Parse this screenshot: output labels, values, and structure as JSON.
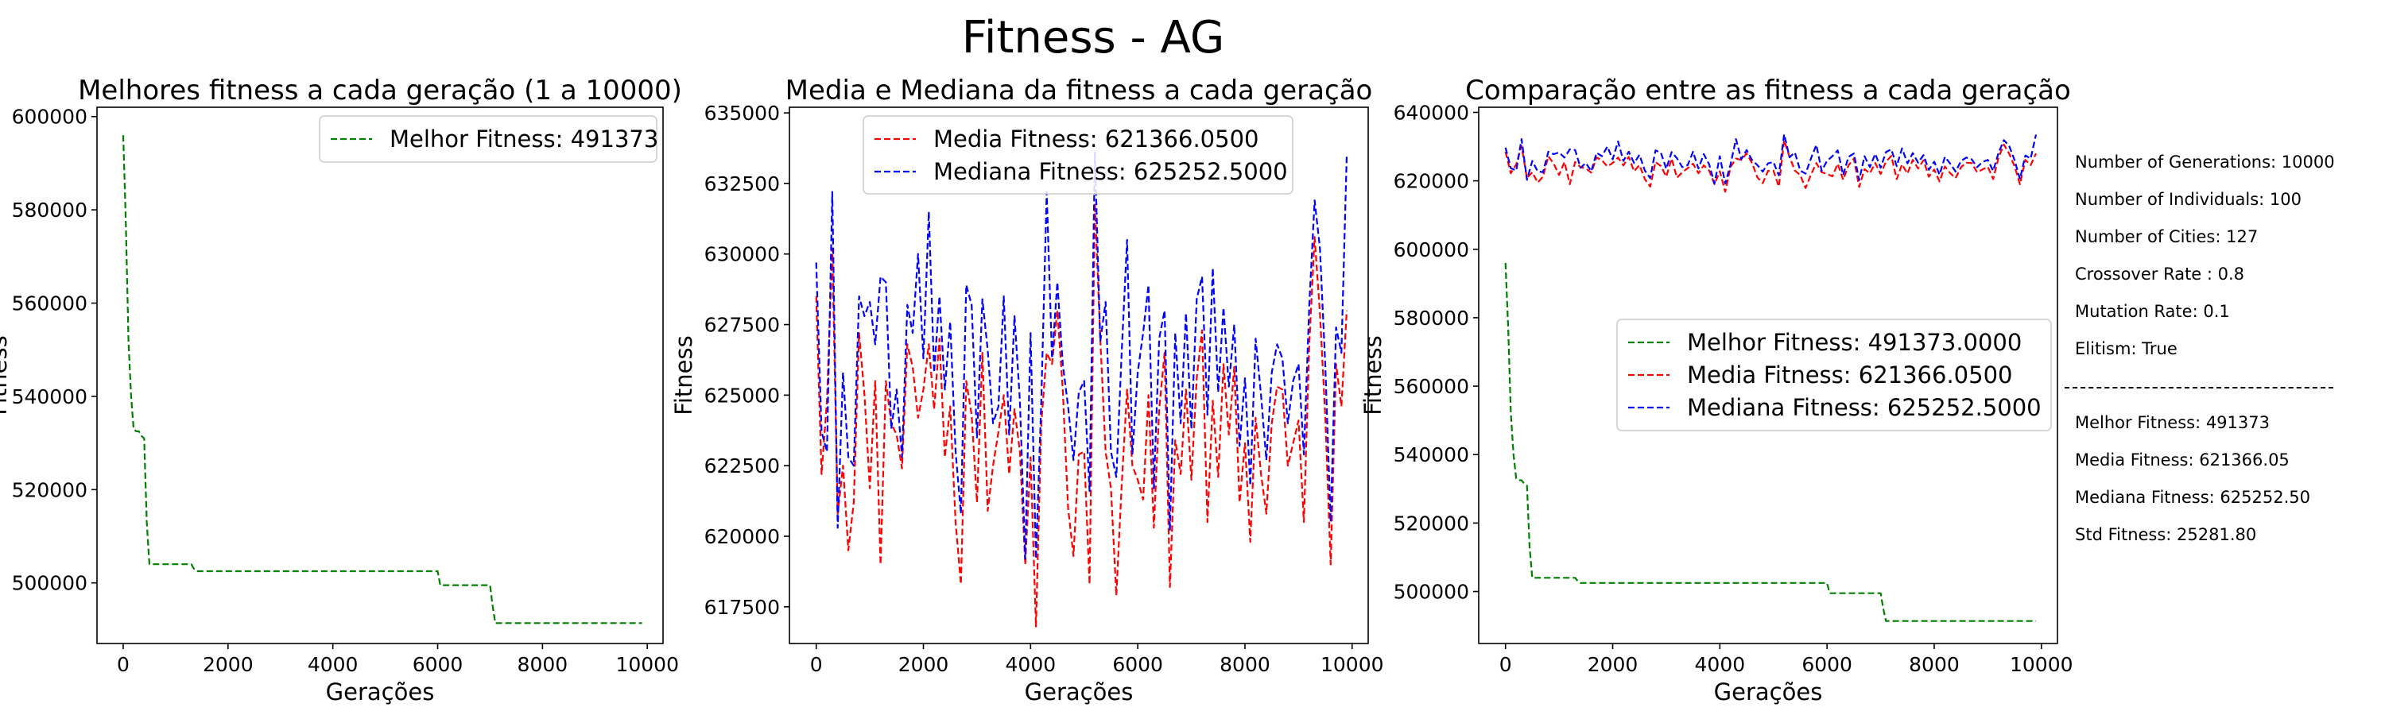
{
  "figure_title": "Fitness - AG",
  "chart_data": [
    {
      "type": "line",
      "title": "Melhores fitness a cada geração (1 a 10000)",
      "xlabel": "Gerações",
      "ylabel": "Fitness",
      "xlim": [
        -500,
        10300
      ],
      "ylim": [
        487000,
        602000
      ],
      "xticks": [
        0,
        2000,
        4000,
        6000,
        8000,
        10000
      ],
      "yticks": [
        500000,
        520000,
        540000,
        560000,
        580000,
        600000
      ],
      "ytick_decimals": 0,
      "legend_position": "upper right",
      "series": [
        {
          "name": "Melhor Fitness: 491373",
          "color": "#008000",
          "x": [
            0,
            50,
            100,
            150,
            200,
            250,
            300,
            350,
            400,
            450,
            500,
            1300,
            1350,
            1400,
            6000,
            6050,
            6100,
            7000,
            7050,
            7100,
            9900
          ],
          "y": [
            596000,
            577000,
            552000,
            540000,
            533000,
            532500,
            532500,
            531500,
            531000,
            513000,
            504000,
            504000,
            503000,
            502500,
            502500,
            499500,
            499500,
            499500,
            495000,
            491373,
            491373
          ]
        }
      ]
    },
    {
      "type": "line",
      "title": "Media e Mediana da fitness a cada geração",
      "xlabel": "Gerações",
      "ylabel": "Fitness",
      "xlim": [
        -500,
        10300
      ],
      "ylim": [
        616200,
        635200
      ],
      "xticks": [
        0,
        2000,
        4000,
        6000,
        8000,
        10000
      ],
      "yticks": [
        617500,
        620000,
        622500,
        625000,
        627500,
        630000,
        632500,
        635000
      ],
      "ytick_decimals": 0,
      "legend_position": "upper center",
      "series": [
        {
          "name": "Media Fitness: 621366.0500",
          "color": "#ff0000",
          "x": [
            0,
            100,
            200,
            300,
            400,
            500,
            600,
            700,
            800,
            900,
            1000,
            1100,
            1200,
            1300,
            1400,
            1500,
            1600,
            1700,
            1800,
            1900,
            2000,
            2100,
            2200,
            2300,
            2400,
            2500,
            2600,
            2700,
            2800,
            2900,
            3000,
            3100,
            3200,
            3300,
            3400,
            3500,
            3600,
            3700,
            3800,
            3900,
            4000,
            4100,
            4200,
            4300,
            4400,
            4500,
            4600,
            4700,
            4800,
            4900,
            5000,
            5100,
            5200,
            5300,
            5400,
            5500,
            5600,
            5700,
            5800,
            5900,
            6000,
            6100,
            6200,
            6300,
            6400,
            6500,
            6600,
            6700,
            6800,
            6900,
            7000,
            7100,
            7200,
            7300,
            7400,
            7500,
            7600,
            7700,
            7800,
            7900,
            8000,
            8100,
            8200,
            8300,
            8400,
            8500,
            8600,
            8700,
            8800,
            8900,
            9000,
            9100,
            9200,
            9300,
            9400,
            9500,
            9600,
            9700,
            9800,
            9900
          ],
          "y": [
            628500,
            622200,
            624800,
            630200,
            620800,
            622500,
            619500,
            621200,
            627200,
            625000,
            621700,
            625500,
            619000,
            625500,
            624000,
            623600,
            622400,
            626800,
            626000,
            624200,
            625200,
            626800,
            624500,
            627000,
            622800,
            624600,
            620500,
            618300,
            625500,
            624300,
            621200,
            626500,
            620900,
            622500,
            623700,
            625000,
            622200,
            624500,
            623000,
            619000,
            622800,
            616800,
            624000,
            626500,
            626100,
            628000,
            625200,
            621000,
            619300,
            622900,
            623000,
            618300,
            631800,
            627000,
            623000,
            621700,
            617900,
            621800,
            625200,
            622500,
            622000,
            621300,
            625000,
            620300,
            624500,
            626500,
            618200,
            623400,
            622200,
            625200,
            622000,
            625600,
            627300,
            620500,
            624800,
            622100,
            626100,
            623600,
            626000,
            621200,
            623300,
            619800,
            624200,
            622200,
            620800,
            624000,
            625300,
            625200,
            622500,
            623300,
            624100,
            620500,
            626800,
            630600,
            627900,
            624200,
            619000,
            626100,
            624600,
            628000
          ]
        },
        {
          "name": "Mediana Fitness: 625252.5000",
          "color": "#0000ff",
          "x": [
            0,
            100,
            200,
            300,
            400,
            500,
            600,
            700,
            800,
            900,
            1000,
            1100,
            1200,
            1300,
            1400,
            1500,
            1600,
            1700,
            1800,
            1900,
            2000,
            2100,
            2200,
            2300,
            2400,
            2500,
            2600,
            2700,
            2800,
            2900,
            3000,
            3100,
            3200,
            3300,
            3400,
            3500,
            3600,
            3700,
            3800,
            3900,
            4000,
            4100,
            4200,
            4300,
            4400,
            4500,
            4600,
            4700,
            4800,
            4900,
            5000,
            5100,
            5200,
            5300,
            5400,
            5500,
            5600,
            5700,
            5800,
            5900,
            6000,
            6100,
            6200,
            6300,
            6400,
            6500,
            6600,
            6700,
            6800,
            6900,
            7000,
            7100,
            7200,
            7300,
            7400,
            7500,
            7600,
            7700,
            7800,
            7900,
            8000,
            8100,
            8200,
            8300,
            8400,
            8500,
            8600,
            8700,
            8800,
            8900,
            9000,
            9100,
            9200,
            9300,
            9400,
            9500,
            9600,
            9700,
            9800,
            9900
          ],
          "y": [
            629700,
            623700,
            623000,
            632200,
            620300,
            625800,
            622800,
            622500,
            628500,
            627800,
            628300,
            626800,
            629200,
            629000,
            623800,
            625200,
            622800,
            628200,
            627200,
            630000,
            626300,
            631500,
            625800,
            628500,
            625200,
            627600,
            623000,
            620800,
            628900,
            628200,
            623500,
            628400,
            626600,
            624000,
            624600,
            628500,
            623600,
            627800,
            624800,
            619200,
            627200,
            619200,
            624800,
            632200,
            626300,
            629000,
            626100,
            624600,
            622700,
            625100,
            625500,
            621600,
            633600,
            626900,
            628300,
            623000,
            622100,
            626500,
            630500,
            622900,
            625800,
            627200,
            628900,
            621700,
            627000,
            628000,
            620200,
            627200,
            624000,
            627900,
            623800,
            628400,
            629200,
            624300,
            629500,
            625100,
            628100,
            625300,
            627500,
            623200,
            625600,
            621800,
            627000,
            625000,
            622700,
            625800,
            626800,
            626300,
            624000,
            625500,
            626100,
            622900,
            628200,
            631900,
            630200,
            626000,
            620500,
            627400,
            626500,
            633500
          ]
        }
      ]
    },
    {
      "type": "line",
      "title": "Comparação entre as fitness a cada geração",
      "xlabel": "Gerações",
      "ylabel": "Fitness",
      "xlim": [
        -500,
        10300
      ],
      "ylim": [
        484800,
        641500
      ],
      "xticks": [
        0,
        2000,
        4000,
        6000,
        8000,
        10000
      ],
      "yticks": [
        500000,
        520000,
        540000,
        560000,
        580000,
        600000,
        620000,
        640000
      ],
      "ytick_decimals": 0,
      "legend_position": "center right",
      "series": [
        {
          "name": "Melhor Fitness: 491373.0000",
          "color": "#008000",
          "x": [
            0,
            50,
            100,
            150,
            200,
            250,
            300,
            350,
            400,
            450,
            500,
            1300,
            1350,
            1400,
            6000,
            6050,
            6100,
            7000,
            7050,
            7100,
            9900
          ],
          "y": [
            596000,
            577000,
            552000,
            540000,
            533000,
            532500,
            532500,
            531500,
            531000,
            513000,
            504000,
            504000,
            503000,
            502500,
            502500,
            499500,
            499500,
            499500,
            495000,
            491373,
            491373
          ]
        },
        {
          "name": "Media Fitness: 621366.0500",
          "color": "#ff0000",
          "x": [
            0,
            100,
            200,
            300,
            400,
            500,
            600,
            700,
            800,
            900,
            1000,
            1100,
            1200,
            1300,
            1400,
            1500,
            1600,
            1700,
            1800,
            1900,
            2000,
            2100,
            2200,
            2300,
            2400,
            2500,
            2600,
            2700,
            2800,
            2900,
            3000,
            3100,
            3200,
            3300,
            3400,
            3500,
            3600,
            3700,
            3800,
            3900,
            4000,
            4100,
            4200,
            4300,
            4400,
            4500,
            4600,
            4700,
            4800,
            4900,
            5000,
            5100,
            5200,
            5300,
            5400,
            5500,
            5600,
            5700,
            5800,
            5900,
            6000,
            6100,
            6200,
            6300,
            6400,
            6500,
            6600,
            6700,
            6800,
            6900,
            7000,
            7100,
            7200,
            7300,
            7400,
            7500,
            7600,
            7700,
            7800,
            7900,
            8000,
            8100,
            8200,
            8300,
            8400,
            8500,
            8600,
            8700,
            8800,
            8900,
            9000,
            9100,
            9200,
            9300,
            9400,
            9500,
            9600,
            9700,
            9800,
            9900
          ],
          "y": [
            628500,
            622200,
            624800,
            630200,
            620800,
            622500,
            619500,
            621200,
            627200,
            625000,
            621700,
            625500,
            619000,
            625500,
            624000,
            623600,
            622400,
            626800,
            626000,
            624200,
            625200,
            626800,
            624500,
            627000,
            622800,
            624600,
            620500,
            618300,
            625500,
            624300,
            621200,
            626500,
            620900,
            622500,
            623700,
            625000,
            622200,
            624500,
            623000,
            619000,
            622800,
            616800,
            624000,
            626500,
            626100,
            628000,
            625200,
            621000,
            619300,
            622900,
            623000,
            618300,
            631800,
            627000,
            623000,
            621700,
            617900,
            621800,
            625200,
            622500,
            622000,
            621300,
            625000,
            620300,
            624500,
            626500,
            618200,
            623400,
            622200,
            625200,
            622000,
            625600,
            627300,
            620500,
            624800,
            622100,
            626100,
            623600,
            626000,
            621200,
            623300,
            619800,
            624200,
            622200,
            620800,
            624000,
            625300,
            625200,
            622500,
            623300,
            624100,
            620500,
            626800,
            630600,
            627900,
            624200,
            619000,
            626100,
            624600,
            628000
          ]
        },
        {
          "name": "Mediana Fitness: 625252.5000",
          "color": "#0000ff",
          "x": [
            0,
            100,
            200,
            300,
            400,
            500,
            600,
            700,
            800,
            900,
            1000,
            1100,
            1200,
            1300,
            1400,
            1500,
            1600,
            1700,
            1800,
            1900,
            2000,
            2100,
            2200,
            2300,
            2400,
            2500,
            2600,
            2700,
            2800,
            2900,
            3000,
            3100,
            3200,
            3300,
            3400,
            3500,
            3600,
            3700,
            3800,
            3900,
            4000,
            4100,
            4200,
            4300,
            4400,
            4500,
            4600,
            4700,
            4800,
            4900,
            5000,
            5100,
            5200,
            5300,
            5400,
            5500,
            5600,
            5700,
            5800,
            5900,
            6000,
            6100,
            6200,
            6300,
            6400,
            6500,
            6600,
            6700,
            6800,
            6900,
            7000,
            7100,
            7200,
            7300,
            7400,
            7500,
            7600,
            7700,
            7800,
            7900,
            8000,
            8100,
            8200,
            8300,
            8400,
            8500,
            8600,
            8700,
            8800,
            8900,
            9000,
            9100,
            9200,
            9300,
            9400,
            9500,
            9600,
            9700,
            9800,
            9900
          ],
          "y": [
            629700,
            623700,
            623000,
            632200,
            620300,
            625800,
            622800,
            622500,
            628500,
            627800,
            628300,
            626800,
            629200,
            629000,
            623800,
            625200,
            622800,
            628200,
            627200,
            630000,
            626300,
            631500,
            625800,
            628500,
            625200,
            627600,
            623000,
            620800,
            628900,
            628200,
            623500,
            628400,
            626600,
            624000,
            624600,
            628500,
            623600,
            627800,
            624800,
            619200,
            627200,
            619200,
            624800,
            632200,
            626300,
            629000,
            626100,
            624600,
            622700,
            625100,
            625500,
            621600,
            633600,
            626900,
            628300,
            623000,
            622100,
            626500,
            630500,
            622900,
            625800,
            627200,
            628900,
            621700,
            627000,
            628000,
            620200,
            627200,
            624000,
            627900,
            623800,
            628400,
            629200,
            624300,
            629500,
            625100,
            628100,
            625300,
            627500,
            623200,
            625600,
            621800,
            627000,
            625000,
            622700,
            625800,
            626800,
            626300,
            624000,
            625500,
            626100,
            622900,
            628200,
            631900,
            630200,
            626000,
            620500,
            627400,
            626500,
            633500
          ]
        }
      ]
    }
  ],
  "info_panel": {
    "parameters": [
      "Number of Generations: 10000",
      "Number of Individuals: 100",
      "Number of Cities: 127",
      "Crossover Rate : 0.8",
      "Mutation Rate: 0.1",
      "Elitism: True"
    ],
    "results": [
      "Melhor Fitness: 491373",
      "Media Fitness: 621366.05",
      "Mediana Fitness: 625252.50",
      "Std Fitness: 25281.80"
    ]
  }
}
